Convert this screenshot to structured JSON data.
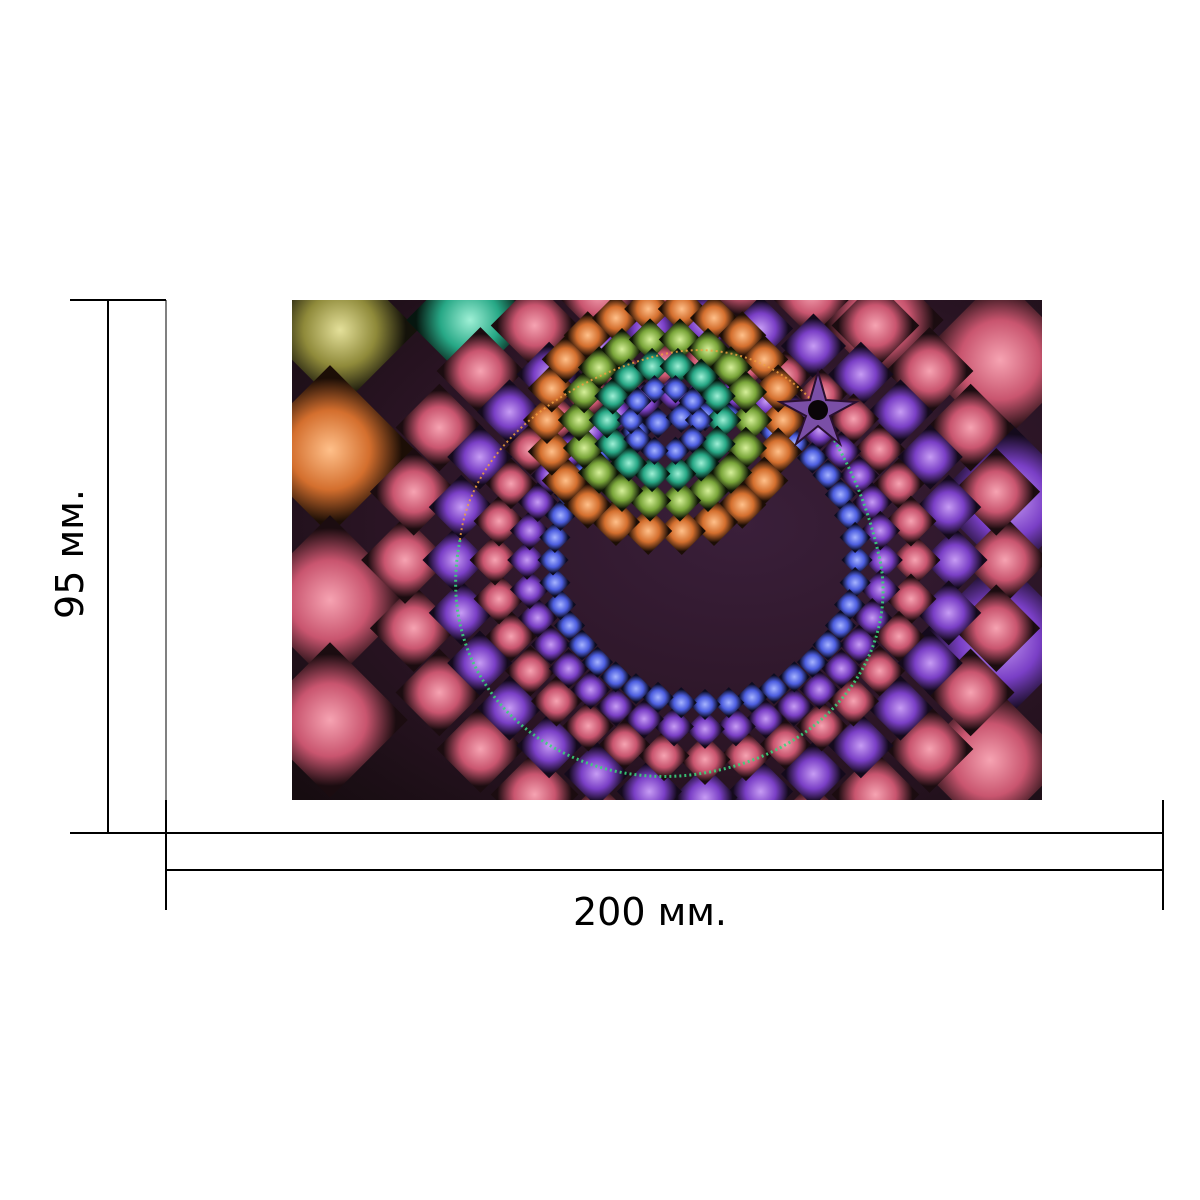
{
  "dimensions": {
    "width_label": "200 мм.",
    "height_label": "95 мм."
  },
  "artwork": {
    "description_icon": "fractal-spiral-artwork",
    "colors": {
      "background_dark": "#1a0f12",
      "pink": "#e06a84",
      "violet": "#8a4fd6",
      "blue": "#5a6cf0",
      "teal": "#2fbf9a",
      "orange": "#e0803a",
      "olive": "#9a9a3c",
      "green": "#6fc04a"
    }
  }
}
